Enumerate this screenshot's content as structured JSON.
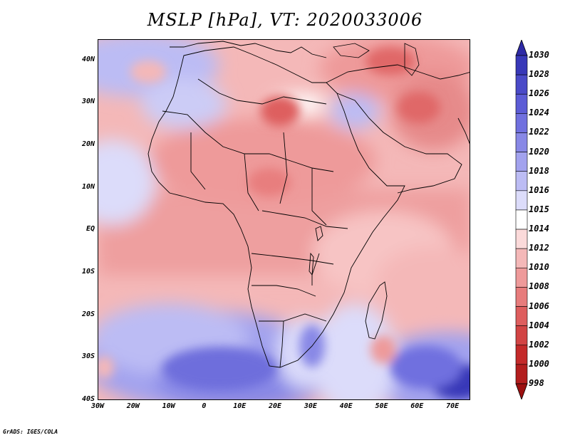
{
  "title": "MSLP [hPa], VT: 2020033006",
  "footer": "GrADS: IGES/COLA",
  "map": {
    "projection": "lat-lon",
    "lon_range": [
      -30,
      75
    ],
    "lat_range": [
      -40,
      45
    ],
    "y_ticks": [
      {
        "label": "40N",
        "lat": 40
      },
      {
        "label": "30N",
        "lat": 30
      },
      {
        "label": "20N",
        "lat": 20
      },
      {
        "label": "10N",
        "lat": 10
      },
      {
        "label": "EQ",
        "lat": 0
      },
      {
        "label": "10S",
        "lat": -10
      },
      {
        "label": "20S",
        "lat": -20
      },
      {
        "label": "30S",
        "lat": -30
      },
      {
        "label": "40S",
        "lat": -40
      }
    ],
    "x_ticks": [
      {
        "label": "30W",
        "lon": -30
      },
      {
        "label": "20W",
        "lon": -20
      },
      {
        "label": "10W",
        "lon": -10
      },
      {
        "label": "0",
        "lon": 0
      },
      {
        "label": "10E",
        "lon": 10
      },
      {
        "label": "20E",
        "lon": 20
      },
      {
        "label": "30E",
        "lon": 30
      },
      {
        "label": "40E",
        "lon": 40
      },
      {
        "label": "50E",
        "lon": 50
      },
      {
        "label": "60E",
        "lon": 60
      },
      {
        "label": "70E",
        "lon": 70
      }
    ]
  },
  "colorbar": {
    "levels": [
      "1030",
      "1028",
      "1026",
      "1024",
      "1022",
      "1020",
      "1018",
      "1016",
      "1015",
      "1014",
      "1012",
      "1010",
      "1008",
      "1006",
      "1004",
      "1002",
      "1000",
      "998"
    ],
    "colors": [
      "#2e2aa6",
      "#3838b8",
      "#4a4ac8",
      "#5c5cd6",
      "#7070df",
      "#8888e6",
      "#a2a2ee",
      "#bcbcf4",
      "#dcdcfa",
      "#ffffff",
      "#fbdada",
      "#f4b8b8",
      "#ee9a9a",
      "#e77c7c",
      "#de5e5e",
      "#d24444",
      "#c42a2a",
      "#b31e1e",
      "#9c1010"
    ]
  },
  "pressure_features": [
    {
      "kind": "low",
      "lon": 20,
      "lat": 29,
      "value": 1004
    },
    {
      "kind": "low",
      "lon": 54,
      "lat": 37,
      "value": 1006
    },
    {
      "kind": "low",
      "lon": 60,
      "lat": 28,
      "value": 1006
    },
    {
      "kind": "low",
      "lon": 18,
      "lat": 10,
      "value": 1008
    },
    {
      "kind": "low",
      "lon": 51,
      "lat": -29,
      "value": 1008
    },
    {
      "kind": "low",
      "lon": -21,
      "lat": 38,
      "value": 1010
    },
    {
      "kind": "low",
      "lon": -30,
      "lat": -31,
      "value": 1010
    },
    {
      "kind": "high",
      "lon": -10,
      "lat": -31,
      "value": 1022
    },
    {
      "kind": "high",
      "lon": 70,
      "lat": -36,
      "value": 1026
    },
    {
      "kind": "high",
      "lon": 38,
      "lat": 28,
      "value": 1018
    },
    {
      "kind": "high",
      "lon": -25,
      "lat": 44,
      "value": 1018
    }
  ]
}
